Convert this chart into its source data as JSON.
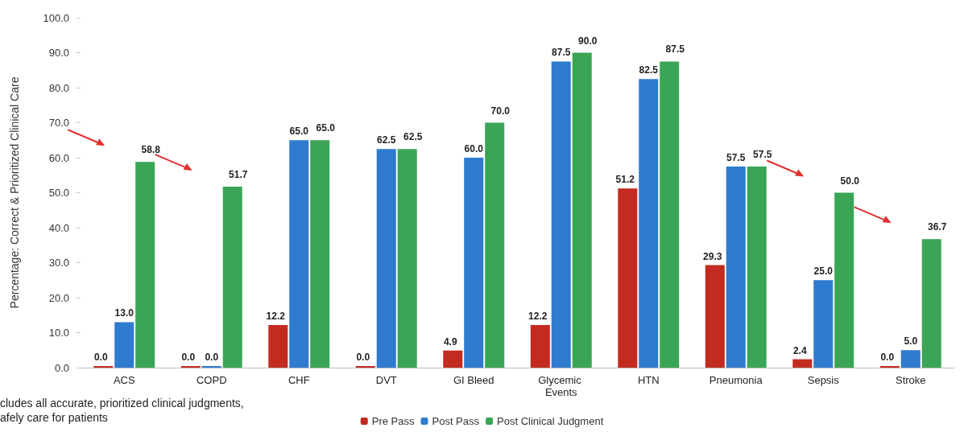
{
  "chart_data": {
    "type": "bar",
    "ylabel": "Percentage: Correct & Prioritized Clinical Care",
    "categories": [
      "ACS",
      "COPD",
      "CHF",
      "DVT",
      "GI Bleed",
      "Glycemic Events",
      "HTN",
      "Pneumonia",
      "Sepsis",
      "Stroke"
    ],
    "series": [
      {
        "name": "Pre Pass",
        "color": "#c42b20",
        "values": [
          0.0,
          0.0,
          12.2,
          0.0,
          4.9,
          12.2,
          51.2,
          29.3,
          2.4,
          0.0
        ],
        "value_labels": [
          "0.0",
          "0.0",
          "12.2",
          "0.0",
          "4.9",
          "12.2",
          "51.2",
          "29.3",
          "2.4",
          "0.0"
        ]
      },
      {
        "name": "Post Pass",
        "color": "#2e7bd0",
        "values": [
          13.0,
          0.0,
          65.0,
          62.5,
          60.0,
          87.5,
          82.5,
          57.5,
          25.0,
          5.0
        ],
        "value_labels": [
          "13.0",
          "0.0",
          "65.0",
          "62.5",
          "60.0",
          "87.5",
          "82.5",
          "57.5",
          "25.0",
          "5.0"
        ]
      },
      {
        "name": "Post Clinical Judgment",
        "color": "#3aa655",
        "values": [
          58.8,
          51.7,
          65.0,
          62.5,
          70.0,
          90.0,
          87.5,
          57.5,
          50.0,
          36.7
        ],
        "value_labels": [
          "58.8",
          "51.7",
          "65.0",
          "62.5",
          "70.0",
          "90.0",
          "87.5",
          "57.5",
          "50.0",
          "36.7"
        ]
      }
    ],
    "ylim": [
      0,
      100
    ],
    "yticks": [
      {
        "value": 0,
        "label": "0.0"
      },
      {
        "value": 10,
        "label": "10.0"
      },
      {
        "value": 20,
        "label": "20.0"
      },
      {
        "value": 30,
        "label": "30.0"
      },
      {
        "value": 40,
        "label": "40.0"
      },
      {
        "value": 50,
        "label": "50.0"
      },
      {
        "value": 60,
        "label": "60.0"
      },
      {
        "value": 70,
        "label": "70.0"
      },
      {
        "value": 80,
        "label": "80.0"
      },
      {
        "value": 90,
        "label": "90.0"
      },
      {
        "value": 100,
        "label": "100.0"
      }
    ],
    "grid": false,
    "legend": "bottom",
    "annotations": [
      "cludes all accurate, prioritized clinical judgments,",
      "afely care for patients"
    ]
  }
}
